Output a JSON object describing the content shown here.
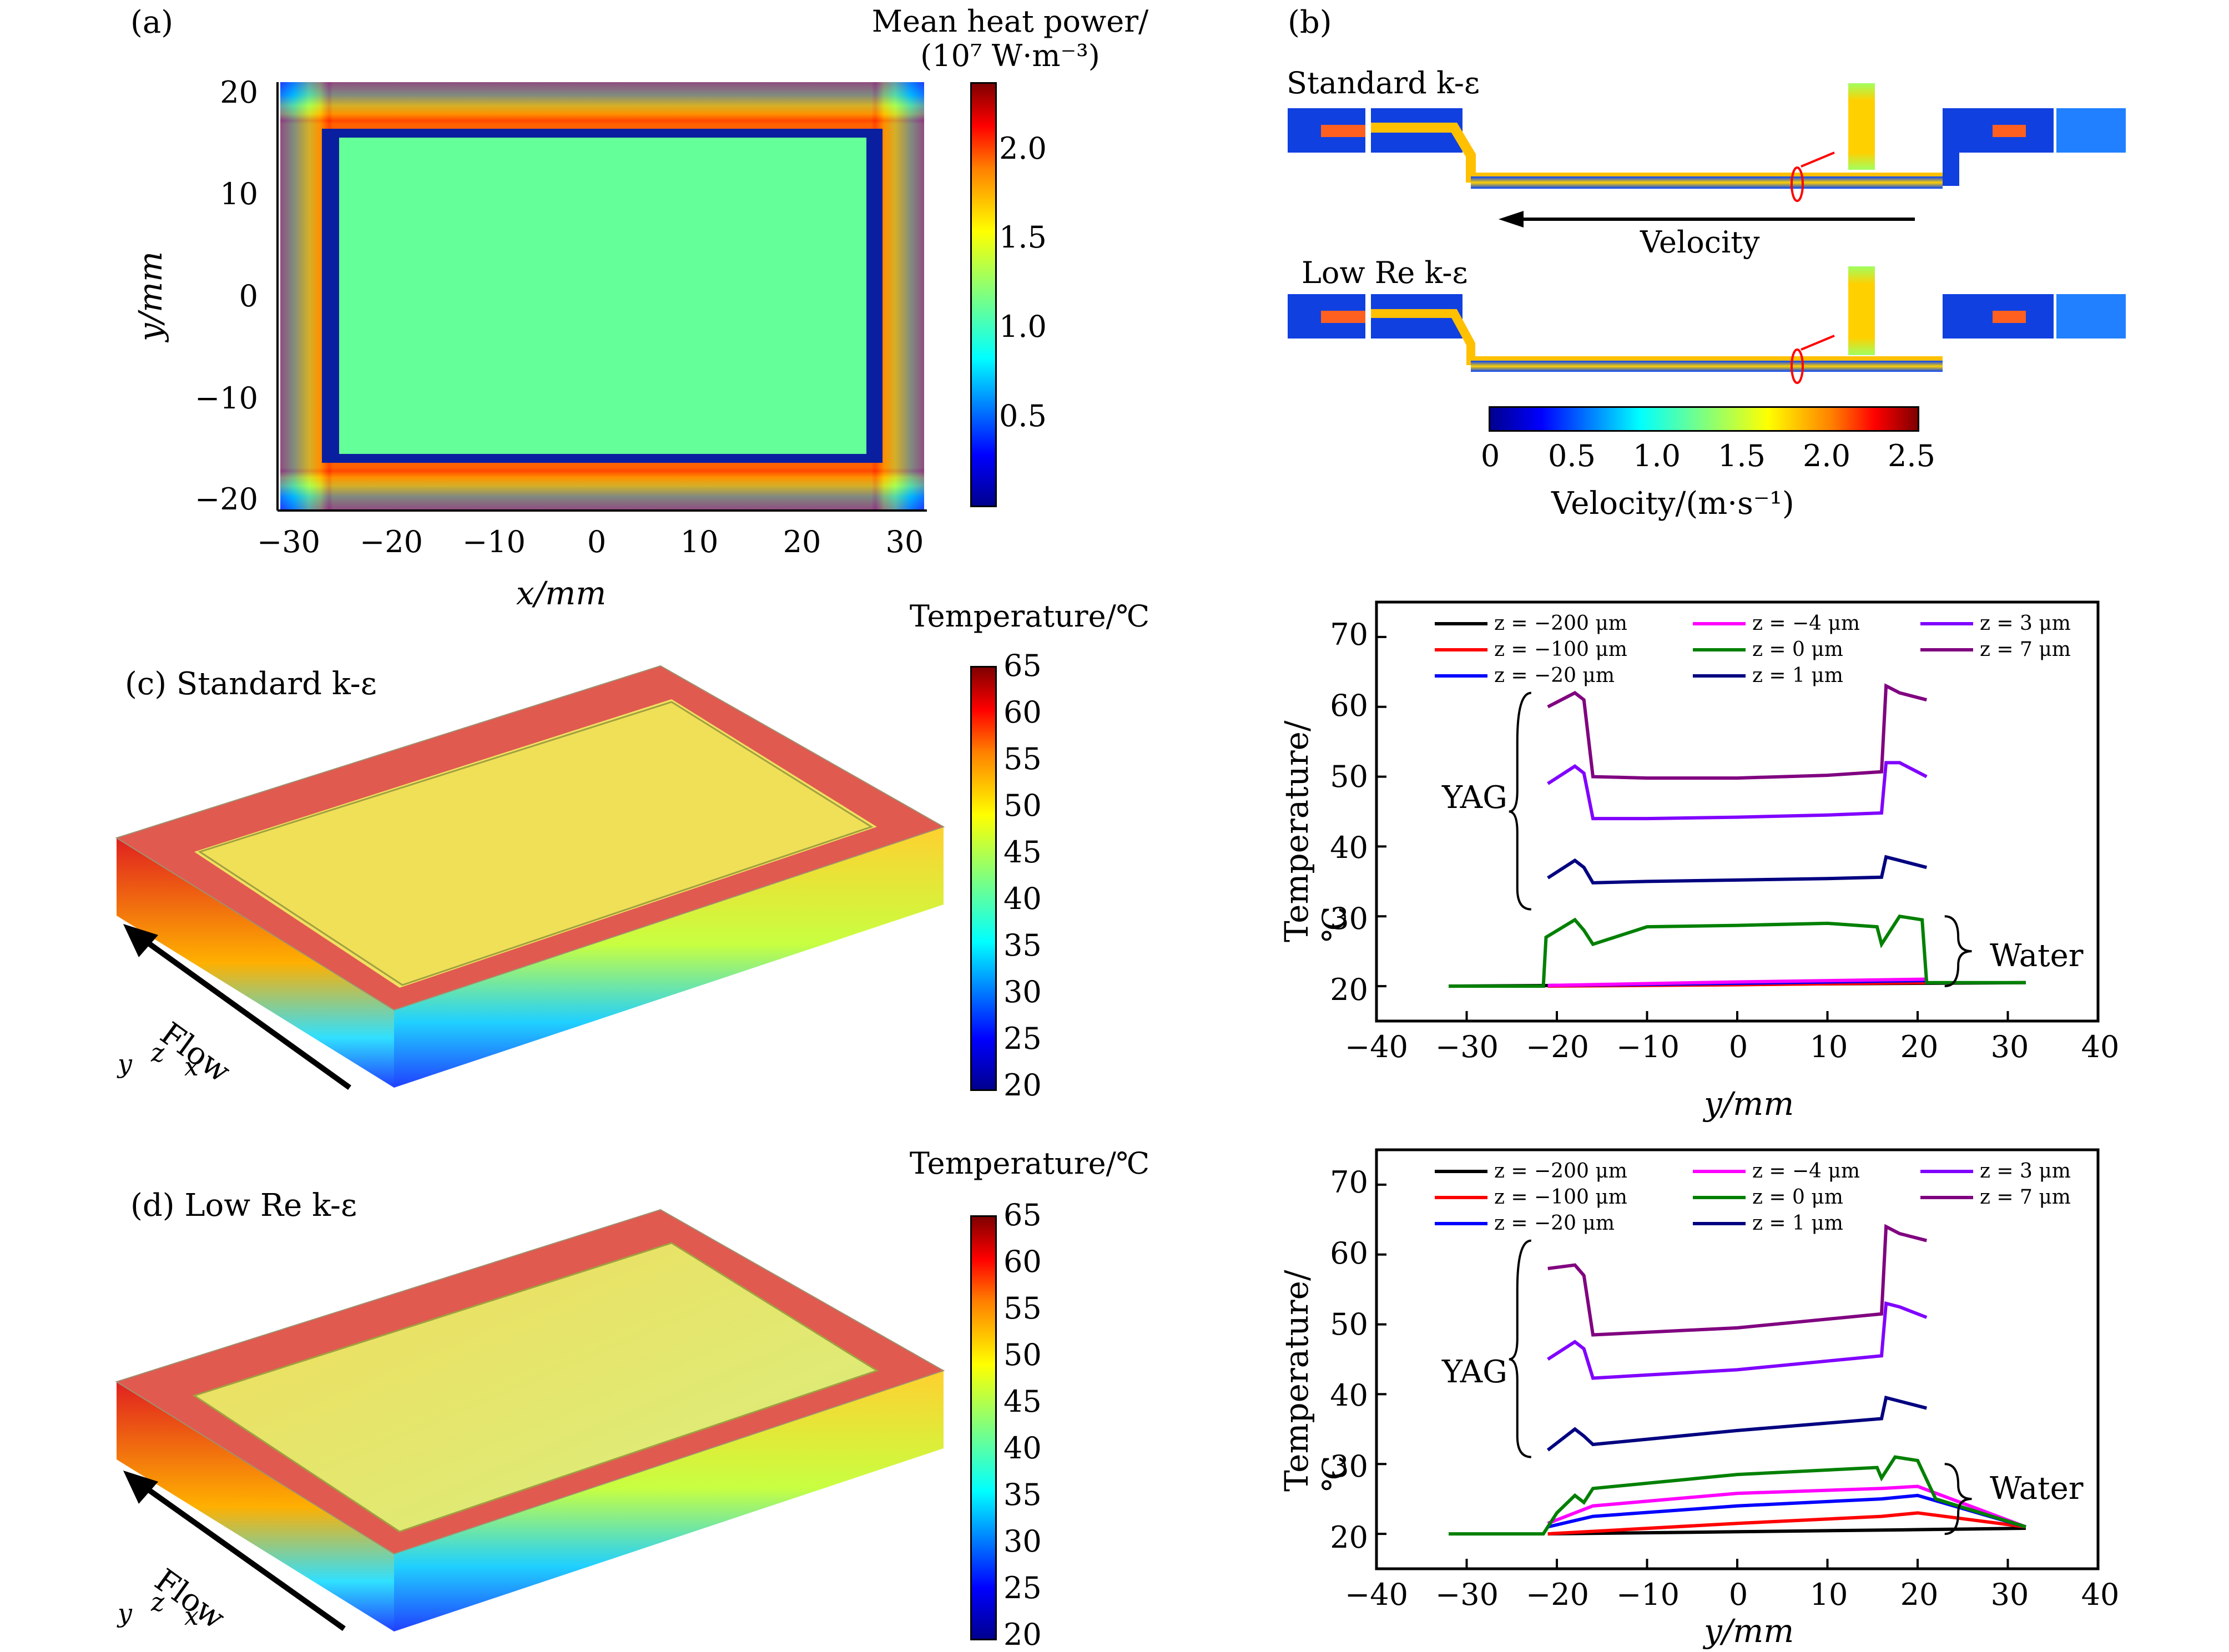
{
  "panels": {
    "a": {
      "label": "(a)",
      "colorbar_title_line1": "Mean heat power/",
      "colorbar_title_line2": "(10⁷ W·m⁻³)",
      "colorbar_ticks": [
        "2.0",
        "1.5",
        "1.0",
        "0.5"
      ],
      "xlabel": "x/mm",
      "ylabel": "y/mm",
      "xticks": [
        "−30",
        "−20",
        "−10",
        "0",
        "10",
        "20",
        "30"
      ],
      "yticks": [
        "20",
        "10",
        "0",
        "−10",
        "−20"
      ]
    },
    "b": {
      "label": "(b)",
      "model1": "Standard k-ε",
      "model2": "Low Re k-ε",
      "arrow_label": "Velocity",
      "colorbar_ticks": [
        "0",
        "0.5",
        "1.0",
        "1.5",
        "2.0",
        "2.5"
      ],
      "colorbar_title": "Velocity/(m·s⁻¹)"
    },
    "c": {
      "label": "(c) Standard k-ε",
      "colorbar_title": "Temperature/℃",
      "colorbar_ticks": [
        "65",
        "60",
        "55",
        "50",
        "45",
        "40",
        "35",
        "30",
        "25",
        "20"
      ],
      "flow_label": "Flow",
      "axes_y": "y",
      "axes_z": "z",
      "axes_x": "x"
    },
    "d": {
      "label": "(d) Low Re k-ε",
      "colorbar_title": "Temperature/℃",
      "colorbar_ticks": [
        "65",
        "60",
        "55",
        "50",
        "45",
        "40",
        "35",
        "30",
        "25",
        "20"
      ],
      "flow_label": "Flow",
      "axes_y": "y",
      "axes_z": "z",
      "axes_x": "x"
    },
    "e": {
      "ylabel": "Temperature/℃",
      "xlabel": "y/mm",
      "xticks": [
        "−40",
        "−30",
        "−20",
        "−10",
        "0",
        "10",
        "20",
        "30",
        "40"
      ],
      "yticks": [
        "70",
        "60",
        "50",
        "40",
        "30",
        "20"
      ],
      "annot_yag": "YAG",
      "annot_water": "Water"
    },
    "f": {
      "ylabel": "Temperature/℃",
      "xlabel": "y/mm",
      "xticks": [
        "−40",
        "−30",
        "−20",
        "−10",
        "0",
        "10",
        "20",
        "30",
        "40"
      ],
      "yticks": [
        "70",
        "60",
        "50",
        "40",
        "30",
        "20"
      ],
      "annot_yag": "YAG",
      "annot_water": "Water"
    }
  },
  "legend": [
    {
      "name": "z = −200 μm",
      "color": "#000000"
    },
    {
      "name": "z = −100 μm",
      "color": "#ff0000"
    },
    {
      "name": "z = −20 μm",
      "color": "#0000ff"
    },
    {
      "name": "z = −4 μm",
      "color": "#ff00ff"
    },
    {
      "name": "z = 0 μm",
      "color": "#008000"
    },
    {
      "name": "z = 1 μm",
      "color": "#000080"
    },
    {
      "name": "z = 3 μm",
      "color": "#8000ff"
    },
    {
      "name": "z = 7 μm",
      "color": "#800080"
    }
  ],
  "chart_data": [
    {
      "type": "heatmap",
      "panel": "a",
      "xlabel": "x/mm",
      "ylabel": "y/mm",
      "xlim": [
        -31,
        31
      ],
      "ylim": [
        -21,
        21
      ],
      "colorbar_range": [
        0,
        2.4
      ],
      "regions": [
        {
          "name": "center",
          "x": [
            -26,
            26
          ],
          "y": [
            -16.5,
            16.5
          ],
          "value": 1.2
        },
        {
          "name": "edge_peak",
          "value": 2.3
        },
        {
          "name": "inner_gap",
          "value": 0.05
        }
      ]
    },
    {
      "type": "line",
      "panel": "e",
      "xlabel": "y/mm",
      "ylabel": "Temperature/℃",
      "xlim": [
        -40,
        40
      ],
      "ylim": [
        15,
        75
      ],
      "series": [
        {
          "name": "z = −200 μm",
          "x": [
            -32,
            32
          ],
          "y": [
            20,
            20.5
          ]
        },
        {
          "name": "z = −100 μm",
          "x": [
            -21,
            0,
            21
          ],
          "y": [
            20,
            20.2,
            20.5
          ]
        },
        {
          "name": "z = −20 μm",
          "x": [
            -21,
            0,
            21
          ],
          "y": [
            20.1,
            20.4,
            20.8
          ]
        },
        {
          "name": "z = −4 μm",
          "x": [
            -21,
            0,
            21
          ],
          "y": [
            20.1,
            20.6,
            21.0
          ]
        },
        {
          "name": "z = 0 μm",
          "x": [
            -32,
            -21.5,
            -21.2,
            -18,
            -17,
            -16,
            -10,
            0,
            10,
            15.5,
            16,
            18,
            20.5,
            21,
            32
          ],
          "y": [
            20,
            20,
            27,
            29.5,
            28,
            26,
            28.5,
            28.7,
            29,
            28.5,
            26,
            30,
            29.5,
            20.5,
            20.5
          ]
        },
        {
          "name": "z = 1 μm",
          "x": [
            -21,
            -18,
            -17,
            -16,
            -10,
            0,
            10,
            16,
            16.5,
            18,
            21
          ],
          "y": [
            35.5,
            38,
            37,
            34.8,
            35,
            35.2,
            35.4,
            35.6,
            38.5,
            38,
            37
          ]
        },
        {
          "name": "z = 3 μm",
          "x": [
            -21,
            -18,
            -17,
            -16,
            -10,
            0,
            10,
            16,
            16.5,
            18,
            21
          ],
          "y": [
            49,
            51.5,
            50.5,
            44,
            44,
            44.2,
            44.5,
            44.8,
            52,
            52,
            50
          ]
        },
        {
          "name": "z = 7 μm",
          "x": [
            -21,
            -18,
            -17,
            -16,
            -10,
            0,
            10,
            16,
            16.5,
            18,
            21
          ],
          "y": [
            60,
            62,
            61,
            50,
            49.8,
            49.8,
            50.2,
            50.7,
            63,
            62,
            61
          ]
        }
      ]
    },
    {
      "type": "line",
      "panel": "f",
      "xlabel": "y/mm",
      "ylabel": "Temperature/℃",
      "xlim": [
        -40,
        40
      ],
      "ylim": [
        15,
        75
      ],
      "series": [
        {
          "name": "z = −200 μm",
          "x": [
            -21,
            0,
            20,
            32
          ],
          "y": [
            20,
            20.3,
            20.6,
            20.8
          ]
        },
        {
          "name": "z = −100 μm",
          "x": [
            -21,
            0,
            16,
            20,
            32
          ],
          "y": [
            20,
            21.5,
            22.5,
            23,
            21
          ]
        },
        {
          "name": "z = −20 μm",
          "x": [
            -21,
            -16,
            0,
            16,
            20,
            32
          ],
          "y": [
            21,
            22.5,
            24,
            25,
            25.5,
            21
          ]
        },
        {
          "name": "z = −4 μm",
          "x": [
            -21,
            -16,
            0,
            16,
            20,
            32
          ],
          "y": [
            21.5,
            24,
            25.8,
            26.5,
            26.8,
            21
          ]
        },
        {
          "name": "z = 0 μm",
          "x": [
            -32,
            -21.5,
            -20,
            -18,
            -17,
            -16,
            0,
            15.5,
            16,
            17.5,
            20,
            22,
            32
          ],
          "y": [
            20,
            20,
            23,
            25.5,
            24.5,
            26.5,
            28.5,
            29.5,
            28,
            31,
            30.5,
            25,
            21
          ]
        },
        {
          "name": "z = 1 μm",
          "x": [
            -21,
            -18,
            -17,
            -16,
            0,
            16,
            16.5,
            18,
            21
          ],
          "y": [
            32,
            35,
            34,
            32.8,
            34.8,
            36.5,
            39.5,
            39,
            38
          ]
        },
        {
          "name": "z = 3 μm",
          "x": [
            -21,
            -18,
            -17,
            -16,
            0,
            16,
            16.5,
            18,
            21
          ],
          "y": [
            45,
            47.5,
            46.5,
            42.3,
            43.5,
            45.5,
            53,
            52.5,
            51
          ]
        },
        {
          "name": "z = 7 μm",
          "x": [
            -21,
            -18,
            -17,
            -16,
            0,
            16,
            16.5,
            18,
            21
          ],
          "y": [
            58,
            58.5,
            57,
            48.5,
            49.5,
            51.5,
            64,
            63,
            62
          ]
        }
      ]
    }
  ]
}
